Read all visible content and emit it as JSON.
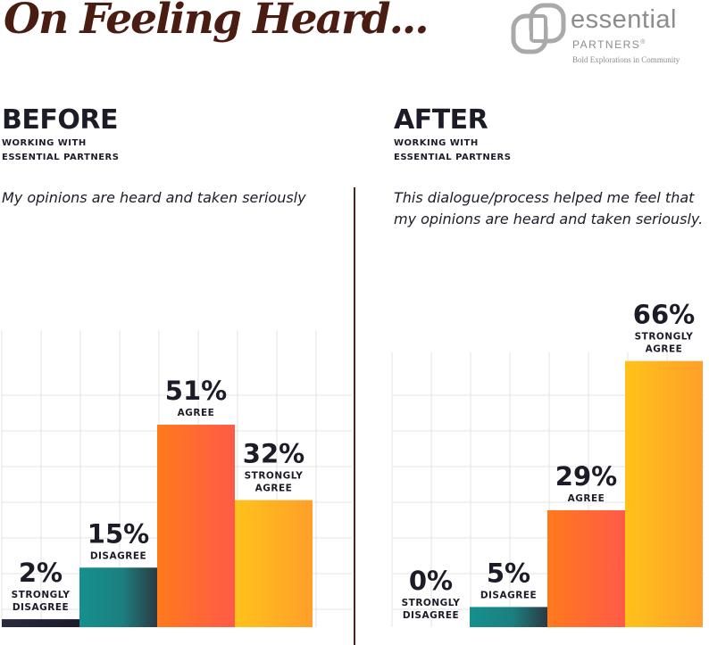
{
  "title": "On Feeling Heard...",
  "logo": {
    "word": "essential",
    "sub": "PARTNERS",
    "tagline": "Bold Explorations in Community",
    "registered": "®"
  },
  "colors": {
    "title": "#4a1d13",
    "text": "#1c1c28",
    "strongly_disagree": "#222236",
    "disagree": "#1f8a8a",
    "agree": "#ff6a2a",
    "strongly_agree": "#ffb11f",
    "grid": "#e3e3e3",
    "divider": "#4a2520"
  },
  "before": {
    "heading": "BEFORE",
    "sub_line1": "WORKING WITH",
    "sub_line2": "ESSENTIAL PARTNERS",
    "question": "My opinions are heard and taken seriously"
  },
  "after": {
    "heading": "AFTER",
    "sub_line1": "WORKING WITH",
    "sub_line2": "ESSENTIAL PARTNERS",
    "question_line1": "This dialogue/process helped me feel that",
    "question_line2": "my opinions are heard and taken seriously."
  },
  "chart_data": [
    {
      "type": "bar",
      "title": "BEFORE",
      "categories": [
        "STRONGLY DISAGREE",
        "DISAGREE",
        "AGREE",
        "STRONGLY AGREE"
      ],
      "values": [
        2,
        15,
        51,
        32
      ],
      "value_labels": [
        "2%",
        "15%",
        "51%",
        "32%"
      ],
      "category_label_lines": [
        [
          "STRONGLY",
          "DISAGREE"
        ],
        [
          "DISAGREE"
        ],
        [
          "AGREE"
        ],
        [
          "STRONGLY",
          "AGREE"
        ]
      ],
      "ylim": [
        0,
        100
      ],
      "grid": true
    },
    {
      "type": "bar",
      "title": "AFTER",
      "categories": [
        "STRONGLY DISAGREE",
        "DISAGREE",
        "AGREE",
        "STRONGLY AGREE"
      ],
      "values": [
        0,
        5,
        29,
        66
      ],
      "value_labels": [
        "0%",
        "5%",
        "29%",
        "66%"
      ],
      "category_label_lines": [
        [
          "STRONGLY",
          "DISAGREE"
        ],
        [
          "DISAGREE"
        ],
        [
          "AGREE"
        ],
        [
          "STRONGLY",
          "AGREE"
        ]
      ],
      "ylim": [
        0,
        100
      ],
      "grid": true
    }
  ]
}
